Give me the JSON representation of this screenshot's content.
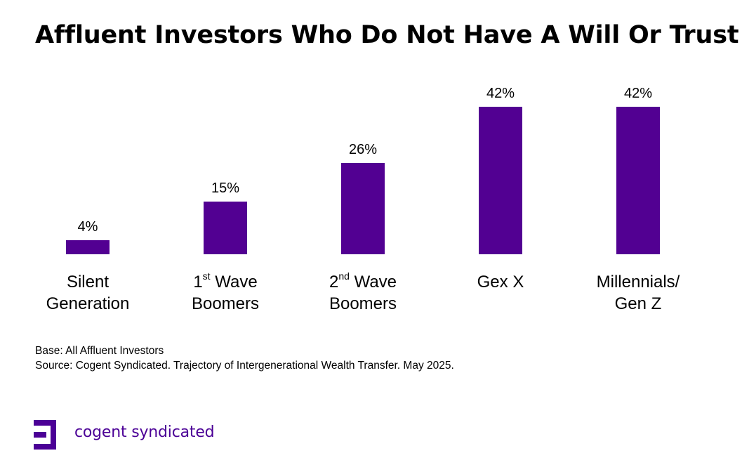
{
  "chart_data": {
    "type": "bar",
    "title": "Affluent Investors Who Do Not Have A Will Or Trust",
    "categories": [
      {
        "lines": [
          {
            "text": "Silent",
            "sup": ""
          },
          {
            "text": "Generation",
            "sup": ""
          }
        ],
        "value": 4,
        "label": "4%"
      },
      {
        "lines": [
          {
            "text": "1",
            "sup": "st",
            "after": " Wave"
          },
          {
            "text": "Boomers",
            "sup": ""
          }
        ],
        "value": 15,
        "label": "15%"
      },
      {
        "lines": [
          {
            "text": "2",
            "sup": "nd",
            "after": " Wave"
          },
          {
            "text": "Boomers",
            "sup": ""
          }
        ],
        "value": 26,
        "label": "26%"
      },
      {
        "lines": [
          {
            "text": "Gex X",
            "sup": ""
          }
        ],
        "value": 42,
        "label": "42%"
      },
      {
        "lines": [
          {
            "text": "Millennials/",
            "sup": ""
          },
          {
            "text": "Gen Z",
            "sup": ""
          }
        ],
        "value": 42,
        "label": "42%"
      }
    ],
    "values": [
      4,
      15,
      26,
      42,
      42
    ],
    "bar_color": "#520092",
    "ylim": [
      0,
      42
    ],
    "grid": false,
    "legend": "none"
  },
  "footnotes": {
    "base": "Base:  All Affluent Investors",
    "source": "Source: Cogent Syndicated. Trajectory of Intergenerational Wealth Transfer. May 2025."
  },
  "brand": {
    "name": "cogent syndicated",
    "color": "#4b0096",
    "logo_icon": "cogent-logo-icon"
  }
}
